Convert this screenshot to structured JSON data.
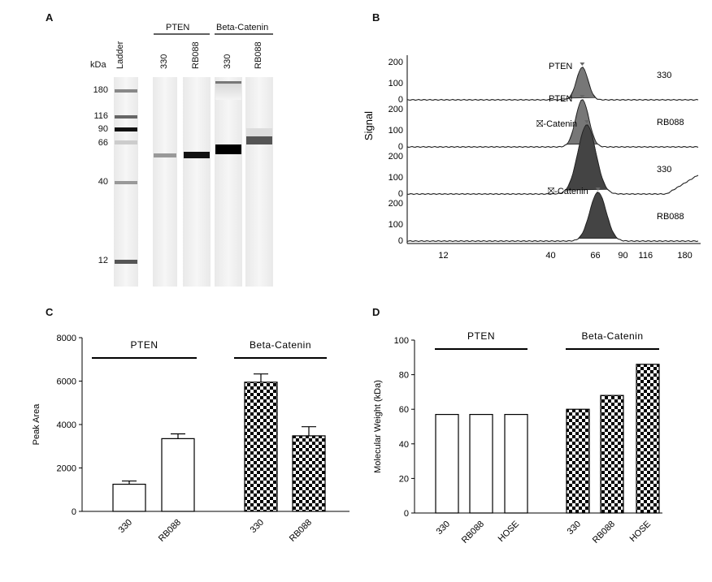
{
  "panels": {
    "a": "A",
    "b": "B",
    "c": "C",
    "d": "D"
  },
  "gel": {
    "ladder_label": "Ladder",
    "kda_label": "kDa",
    "group_labels": [
      "PTEN",
      "Beta-Catenin"
    ],
    "lane_labels": [
      "330",
      "RB088",
      "330",
      "RB088"
    ],
    "markers": [
      "180",
      "116",
      "90",
      "66",
      "40",
      "12"
    ]
  },
  "electropherogram": {
    "ylabel": "Signal",
    "y_ticks": [
      "200",
      "100",
      "0"
    ],
    "x_ticks": [
      "12",
      "40",
      "66",
      "90",
      "116",
      "180"
    ],
    "traces": [
      {
        "label": "PTEN",
        "sample": "330",
        "peak_kda": 57
      },
      {
        "label": "PTEN",
        "sample": "RB088",
        "peak_kda": 57
      },
      {
        "label": "⛝-Catenin",
        "sample": "330",
        "peak_kda": 60
      },
      {
        "label": "⛝-Catenin",
        "sample": "RB088",
        "peak_kda": 68
      }
    ]
  },
  "chart_data": [
    {
      "type": "bar",
      "panel": "C",
      "ylabel": "Peak Area",
      "ylim": [
        0,
        8000
      ],
      "y_ticks": [
        "0",
        "2000",
        "4000",
        "6000",
        "8000"
      ],
      "groups": [
        {
          "name": "PTEN",
          "categories": [
            "330",
            "RB088"
          ],
          "values": [
            1250,
            3350
          ],
          "errors": [
            150,
            220
          ],
          "pattern": "white"
        },
        {
          "name": "Beta-Catenin",
          "categories": [
            "330",
            "RB088"
          ],
          "values": [
            5950,
            3480
          ],
          "errors": [
            380,
            420
          ],
          "pattern": "checker"
        }
      ]
    },
    {
      "type": "bar",
      "panel": "D",
      "ylabel": "Molecular Weight (kDa)",
      "ylim": [
        0,
        100
      ],
      "y_ticks": [
        "0",
        "20",
        "40",
        "60",
        "80",
        "100"
      ],
      "groups": [
        {
          "name": "PTEN",
          "categories": [
            "330",
            "RB088",
            "HOSE"
          ],
          "values": [
            57,
            57,
            57
          ],
          "pattern": "white"
        },
        {
          "name": "Beta-Catenin",
          "categories": [
            "330",
            "RB088",
            "HOSE"
          ],
          "values": [
            60,
            68,
            86
          ],
          "pattern": "checker"
        }
      ]
    }
  ]
}
